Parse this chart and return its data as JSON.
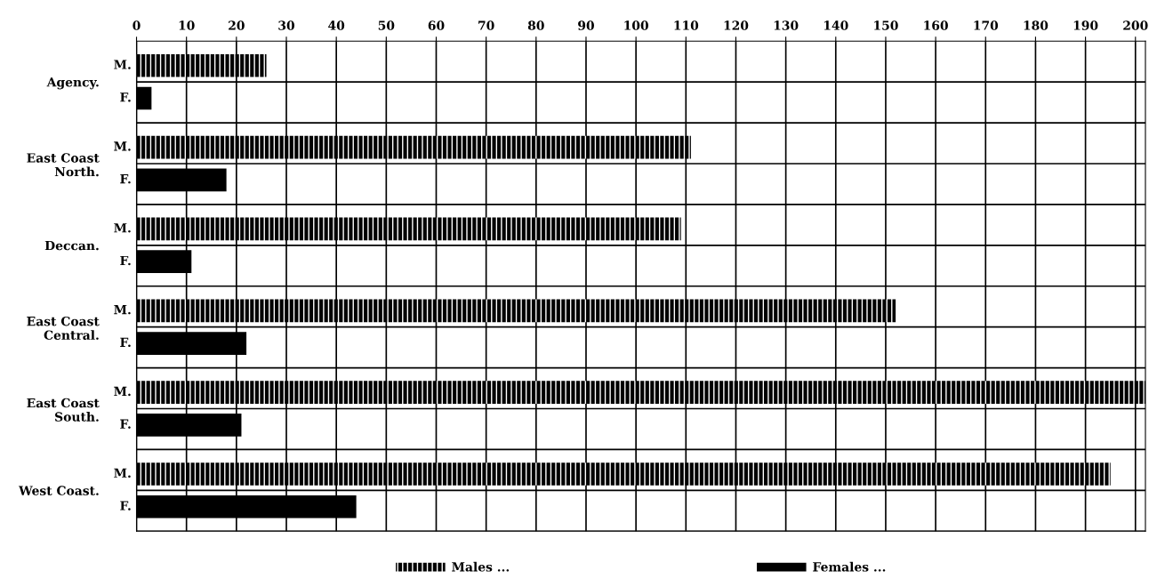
{
  "chart_data": {
    "type": "bar",
    "orientation": "horizontal",
    "categories": [
      "Agency.",
      "East Coast North.",
      "Deccan.",
      "East Coast Central.",
      "East Coast South.",
      "West Coast."
    ],
    "series": [
      {
        "name": "Males ...",
        "color": "#000000",
        "values": [
          26,
          111,
          109,
          152,
          202,
          195
        ]
      },
      {
        "name": "Females ...",
        "color": "#000000",
        "values": [
          3,
          18,
          11,
          22,
          21,
          44
        ]
      }
    ],
    "xlim": [
      0,
      202
    ],
    "xticks": [
      0,
      10,
      20,
      30,
      40,
      50,
      60,
      70,
      80,
      90,
      100,
      110,
      120,
      130,
      140,
      150,
      160,
      170,
      180,
      190,
      200
    ],
    "annotations": [
      "M.",
      "F."
    ],
    "grid": true,
    "legend": "bottom"
  }
}
